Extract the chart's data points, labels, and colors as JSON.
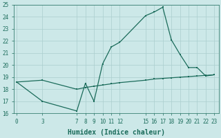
{
  "xlabel": "Humidex (Indice chaleur)",
  "ylabel": "",
  "bg_color": "#cce8e8",
  "line_color": "#1a6b5a",
  "grid_color": "#aacece",
  "series1_x": [
    0,
    3,
    7,
    8,
    9,
    10,
    11,
    12,
    15,
    16,
    17,
    18,
    19,
    20,
    21,
    22,
    23
  ],
  "series1_y": [
    18.6,
    17.0,
    16.2,
    18.5,
    17.0,
    20.1,
    21.5,
    21.9,
    24.1,
    24.4,
    24.8,
    22.1,
    20.9,
    19.8,
    19.8,
    19.1,
    19.2
  ],
  "series2_x": [
    0,
    3,
    7,
    8,
    9,
    10,
    11,
    12,
    15,
    16,
    17,
    18,
    19,
    20,
    21,
    22,
    23
  ],
  "series2_y": [
    18.6,
    18.75,
    18.0,
    18.15,
    18.25,
    18.35,
    18.45,
    18.55,
    18.75,
    18.85,
    18.9,
    18.95,
    19.0,
    19.05,
    19.1,
    19.15,
    19.2
  ],
  "ylim": [
    16,
    25
  ],
  "xlim": [
    -0.3,
    23.5
  ],
  "yticks": [
    16,
    17,
    18,
    19,
    20,
    21,
    22,
    23,
    24,
    25
  ],
  "xticks": [
    0,
    3,
    7,
    8,
    9,
    10,
    11,
    12,
    15,
    16,
    17,
    18,
    19,
    20,
    21,
    22,
    23
  ],
  "xtick_labels": [
    "0",
    "3",
    "7",
    "8",
    "9",
    "10",
    "11",
    "12",
    "15",
    "16",
    "17",
    "18",
    "19",
    "20",
    "21",
    "22",
    "23"
  ],
  "title_fontsize": 7,
  "label_fontsize": 7,
  "tick_fontsize": 5.5
}
